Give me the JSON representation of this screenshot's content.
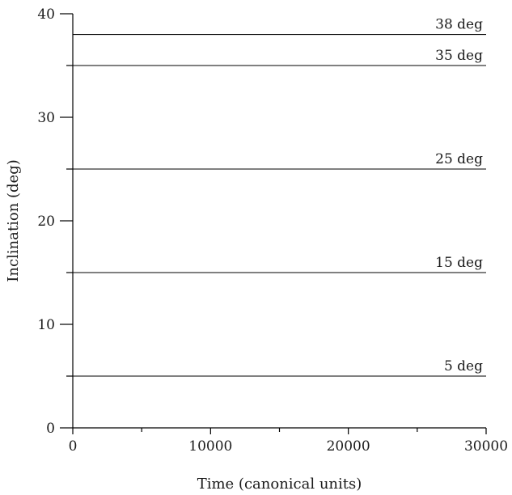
{
  "chart_data": {
    "type": "line",
    "title": "",
    "xlabel": "Time (canonical units)",
    "ylabel": "Inclination (deg)",
    "xlim": [
      0,
      30000
    ],
    "ylim": [
      0,
      40
    ],
    "x_ticks": [
      0,
      10000,
      20000,
      30000
    ],
    "x_tick_labels": [
      "0",
      "10000",
      "20000",
      "30000"
    ],
    "y_ticks": [
      0,
      10,
      20,
      30,
      40
    ],
    "y_tick_labels": [
      "0",
      "10",
      "20",
      "30",
      "40"
    ],
    "grid": false,
    "legend": "none",
    "series": [
      {
        "name": "38 deg",
        "x": [
          0,
          30000
        ],
        "y": [
          38,
          38
        ]
      },
      {
        "name": "35 deg",
        "x": [
          0,
          30000
        ],
        "y": [
          35,
          35
        ]
      },
      {
        "name": "25 deg",
        "x": [
          0,
          30000
        ],
        "y": [
          25,
          25
        ]
      },
      {
        "name": "15 deg",
        "x": [
          0,
          30000
        ],
        "y": [
          15,
          15
        ]
      },
      {
        "name": "5 deg",
        "x": [
          0,
          30000
        ],
        "y": [
          5,
          5
        ]
      }
    ],
    "colors": {
      "line": "#000000",
      "text": "#1a1a1a"
    }
  }
}
